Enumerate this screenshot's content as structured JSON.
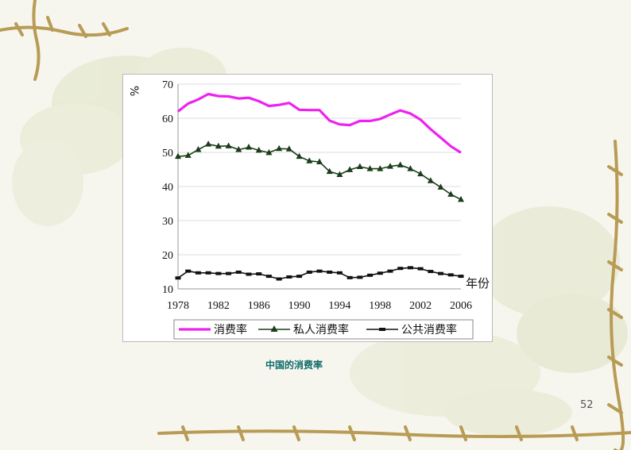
{
  "chart_data": {
    "type": "line",
    "ylabel": "%",
    "xlabel": "年份",
    "ylim": [
      10,
      70
    ],
    "yticks": [
      10,
      20,
      30,
      40,
      50,
      60,
      70
    ],
    "xlim": [
      1978,
      2006
    ],
    "xticks": [
      1978,
      1982,
      1986,
      1990,
      1994,
      1998,
      2002,
      2006
    ],
    "grid": true,
    "legend_position": "bottom",
    "x": [
      1978,
      1979,
      1980,
      1981,
      1982,
      1983,
      1984,
      1985,
      1986,
      1987,
      1988,
      1989,
      1990,
      1991,
      1992,
      1993,
      1994,
      1995,
      1996,
      1997,
      1998,
      1999,
      2000,
      2001,
      2002,
      2003,
      2004,
      2005,
      2006
    ],
    "series": [
      {
        "name": "消费率",
        "color": "#ee22ee",
        "marker": "none",
        "values": [
          62.0,
          64.3,
          65.5,
          67.1,
          66.5,
          66.4,
          65.8,
          66.0,
          65.0,
          63.6,
          63.9,
          64.5,
          62.5,
          62.4,
          62.4,
          59.3,
          58.2,
          58.0,
          59.2,
          59.2,
          59.8,
          61.1,
          62.3,
          61.4,
          59.6,
          56.8,
          54.3,
          51.8,
          49.9
        ]
      },
      {
        "name": "私人消费率",
        "color": "#1a3d1a",
        "marker": "triangle",
        "values": [
          48.8,
          49.1,
          50.8,
          52.4,
          51.8,
          51.9,
          50.8,
          51.5,
          50.6,
          49.9,
          51.1,
          51.0,
          48.8,
          47.5,
          47.2,
          44.4,
          43.5,
          44.9,
          45.8,
          45.2,
          45.2,
          45.9,
          46.3,
          45.2,
          43.7,
          41.7,
          39.8,
          37.7,
          36.2
        ]
      },
      {
        "name": "公共消费率",
        "color": "#111111",
        "marker": "dash",
        "values": [
          13.2,
          15.2,
          14.7,
          14.7,
          14.5,
          14.5,
          14.9,
          14.3,
          14.4,
          13.7,
          12.9,
          13.5,
          13.7,
          14.9,
          15.2,
          14.9,
          14.7,
          13.3,
          13.4,
          14.0,
          14.6,
          15.2,
          16.0,
          16.2,
          15.9,
          15.1,
          14.5,
          14.1,
          13.7
        ]
      }
    ]
  },
  "caption": "中国的消费率",
  "page_number": "52"
}
